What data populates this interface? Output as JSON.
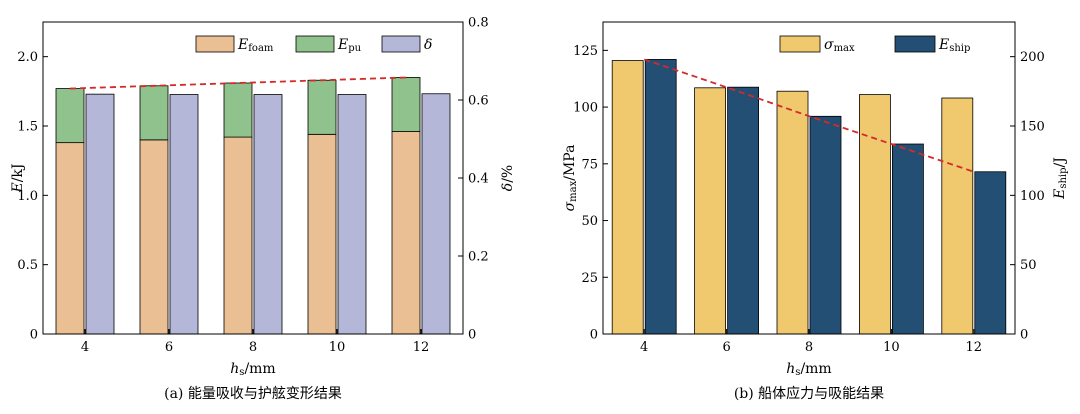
{
  "chart_data": [
    {
      "type": "bar",
      "stacked_series": [
        "E_foam",
        "E_pu"
      ],
      "categories": [
        "4",
        "6",
        "8",
        "10",
        "12"
      ],
      "series": [
        {
          "name": "E_foam",
          "axis": "left",
          "color": "#ebbf94",
          "values": [
            1.38,
            1.4,
            1.42,
            1.44,
            1.46
          ]
        },
        {
          "name": "E_pu",
          "axis": "left",
          "color": "#8fc28c",
          "values": [
            0.39,
            0.39,
            0.39,
            0.39,
            0.39
          ]
        },
        {
          "name": "δ",
          "axis": "right",
          "color": "#b4b7d8",
          "values": [
            0.615,
            0.614,
            0.614,
            0.614,
            0.616
          ]
        }
      ],
      "trend_line": {
        "style": "dashed",
        "color": "#d42a2a",
        "values": [
          1.77,
          1.79,
          1.81,
          1.83,
          1.85
        ]
      },
      "legend": [
        {
          "main": "E",
          "sub": "foam"
        },
        {
          "main": "E",
          "sub": "pu"
        },
        {
          "main": "δ",
          "sub": ""
        }
      ],
      "xlabel": {
        "main": "h",
        "sub": "s",
        "unit": "/mm"
      },
      "ylabel": {
        "main": "E",
        "unit": "/kJ"
      },
      "y2label": {
        "main": "δ",
        "unit": "/%"
      },
      "ylim": [
        0,
        2.25
      ],
      "y2lim": [
        0,
        0.8
      ],
      "yticks": [
        "0",
        "0.5",
        "1.0",
        "1.5",
        "2.0"
      ],
      "y2ticks": [
        "0",
        "0.2",
        "0.4",
        "0.6",
        "0.8"
      ],
      "caption": "(a)  能量吸收与护舷变形结果"
    },
    {
      "type": "bar",
      "categories": [
        "4",
        "6",
        "8",
        "10",
        "12"
      ],
      "series": [
        {
          "name": "σ_max",
          "axis": "left",
          "color": "#f0c96e",
          "values": [
            120.5,
            108.5,
            107.0,
            105.5,
            104.0
          ]
        },
        {
          "name": "E_ship",
          "axis": "right",
          "color": "#244f74",
          "values": [
            198,
            178,
            157,
            137,
            117
          ]
        }
      ],
      "trend_line": {
        "style": "dashed",
        "color": "#d42a2a",
        "axis": "right",
        "values": [
          198,
          178,
          157,
          137,
          117
        ]
      },
      "legend": [
        {
          "main": "σ",
          "sub": "max"
        },
        {
          "main": "E",
          "sub": "ship"
        }
      ],
      "xlabel": {
        "main": "h",
        "sub": "s",
        "unit": "/mm"
      },
      "ylabel": {
        "main": "σ",
        "sub": "max",
        "unit": "/MPa"
      },
      "y2label": {
        "main": "E",
        "sub": "ship",
        "unit": "/J"
      },
      "ylim": [
        0,
        137.5
      ],
      "y2lim": [
        0,
        225
      ],
      "yticks": [
        "0",
        "25",
        "50",
        "75",
        "100",
        "125"
      ],
      "y2ticks": [
        "0",
        "50",
        "100",
        "150",
        "200"
      ],
      "caption": "(b)  船体应力与吸能结果"
    }
  ]
}
